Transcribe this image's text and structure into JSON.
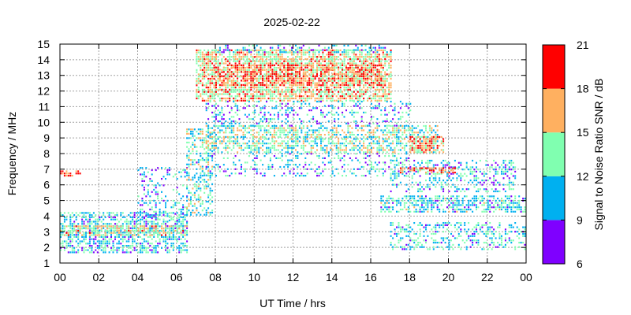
{
  "chart_data": {
    "type": "heatmap",
    "title": "2025-02-22",
    "xlabel": "UT Time / hrs",
    "ylabel": "Frequency / MHz",
    "xlim": [
      0,
      24
    ],
    "ylim": [
      1,
      15
    ],
    "x_ticks": [
      "00",
      "02",
      "04",
      "06",
      "08",
      "10",
      "12",
      "14",
      "16",
      "18",
      "20",
      "22",
      "00"
    ],
    "y_ticks": [
      "1",
      "2",
      "3",
      "4",
      "5",
      "6",
      "7",
      "8",
      "9",
      "10",
      "11",
      "12",
      "13",
      "14",
      "15"
    ],
    "grid": true,
    "colorbar": {
      "label": "Signal to Noise Ratio SNR / dB",
      "ticks": [
        "6",
        "9",
        "12",
        "15",
        "18",
        "21"
      ],
      "range": [
        6,
        21
      ],
      "bands": [
        {
          "from": 6,
          "to": 9,
          "color": "#7f00ff"
        },
        {
          "from": 9,
          "to": 12,
          "color": "#00b0f0"
        },
        {
          "from": 12,
          "to": 15,
          "color": "#80ffb0"
        },
        {
          "from": 15,
          "to": 18,
          "color": "#ffb060"
        },
        {
          "from": 18,
          "to": 21,
          "color": "#ff0000"
        }
      ]
    },
    "regions": [
      {
        "t0": 0.0,
        "t1": 6.5,
        "f0": 1.6,
        "f1": 4.2,
        "density": 0.55,
        "snr": 11.5
      },
      {
        "t0": 0.0,
        "t1": 6.5,
        "f0": 2.7,
        "f1": 3.3,
        "density": 0.6,
        "snr": 15
      },
      {
        "t0": 0.0,
        "t1": 1.0,
        "f0": 6.5,
        "f1": 6.8,
        "density": 0.7,
        "snr": 19
      },
      {
        "t0": 4.0,
        "t1": 6.5,
        "f0": 3.5,
        "f1": 7.0,
        "density": 0.25,
        "snr": 10.5
      },
      {
        "t0": 6.5,
        "t1": 7.8,
        "f0": 4.0,
        "f1": 9.5,
        "density": 0.45,
        "snr": 13
      },
      {
        "t0": 7.0,
        "t1": 17.0,
        "f0": 11.3,
        "f1": 14.6,
        "density": 0.7,
        "snr": 15.5
      },
      {
        "t0": 8.0,
        "t1": 16.5,
        "f0": 12.3,
        "f1": 13.6,
        "density": 0.5,
        "snr": 18.5
      },
      {
        "t0": 8.0,
        "t1": 17.0,
        "f0": 14.4,
        "f1": 15.0,
        "density": 0.3,
        "snr": 10.5
      },
      {
        "t0": 7.5,
        "t1": 19.5,
        "f0": 8.0,
        "f1": 9.7,
        "density": 0.55,
        "snr": 13.5
      },
      {
        "t0": 7.5,
        "t1": 18.0,
        "f0": 9.7,
        "f1": 11.3,
        "density": 0.25,
        "snr": 10.5
      },
      {
        "t0": 7.0,
        "t1": 18.0,
        "f0": 6.5,
        "f1": 8.0,
        "density": 0.2,
        "snr": 11
      },
      {
        "t0": 16.5,
        "t1": 24.0,
        "f0": 4.2,
        "f1": 5.2,
        "density": 0.55,
        "snr": 12
      },
      {
        "t0": 17.0,
        "t1": 23.5,
        "f0": 5.5,
        "f1": 7.5,
        "density": 0.35,
        "snr": 11
      },
      {
        "t0": 17.5,
        "t1": 20.5,
        "f0": 6.7,
        "f1": 7.1,
        "density": 0.6,
        "snr": 18
      },
      {
        "t0": 17.0,
        "t1": 24.0,
        "f0": 1.8,
        "f1": 3.5,
        "density": 0.35,
        "snr": 11.5
      },
      {
        "t0": 18.0,
        "t1": 19.8,
        "f0": 8.0,
        "f1": 9.0,
        "density": 0.6,
        "snr": 17
      }
    ]
  }
}
